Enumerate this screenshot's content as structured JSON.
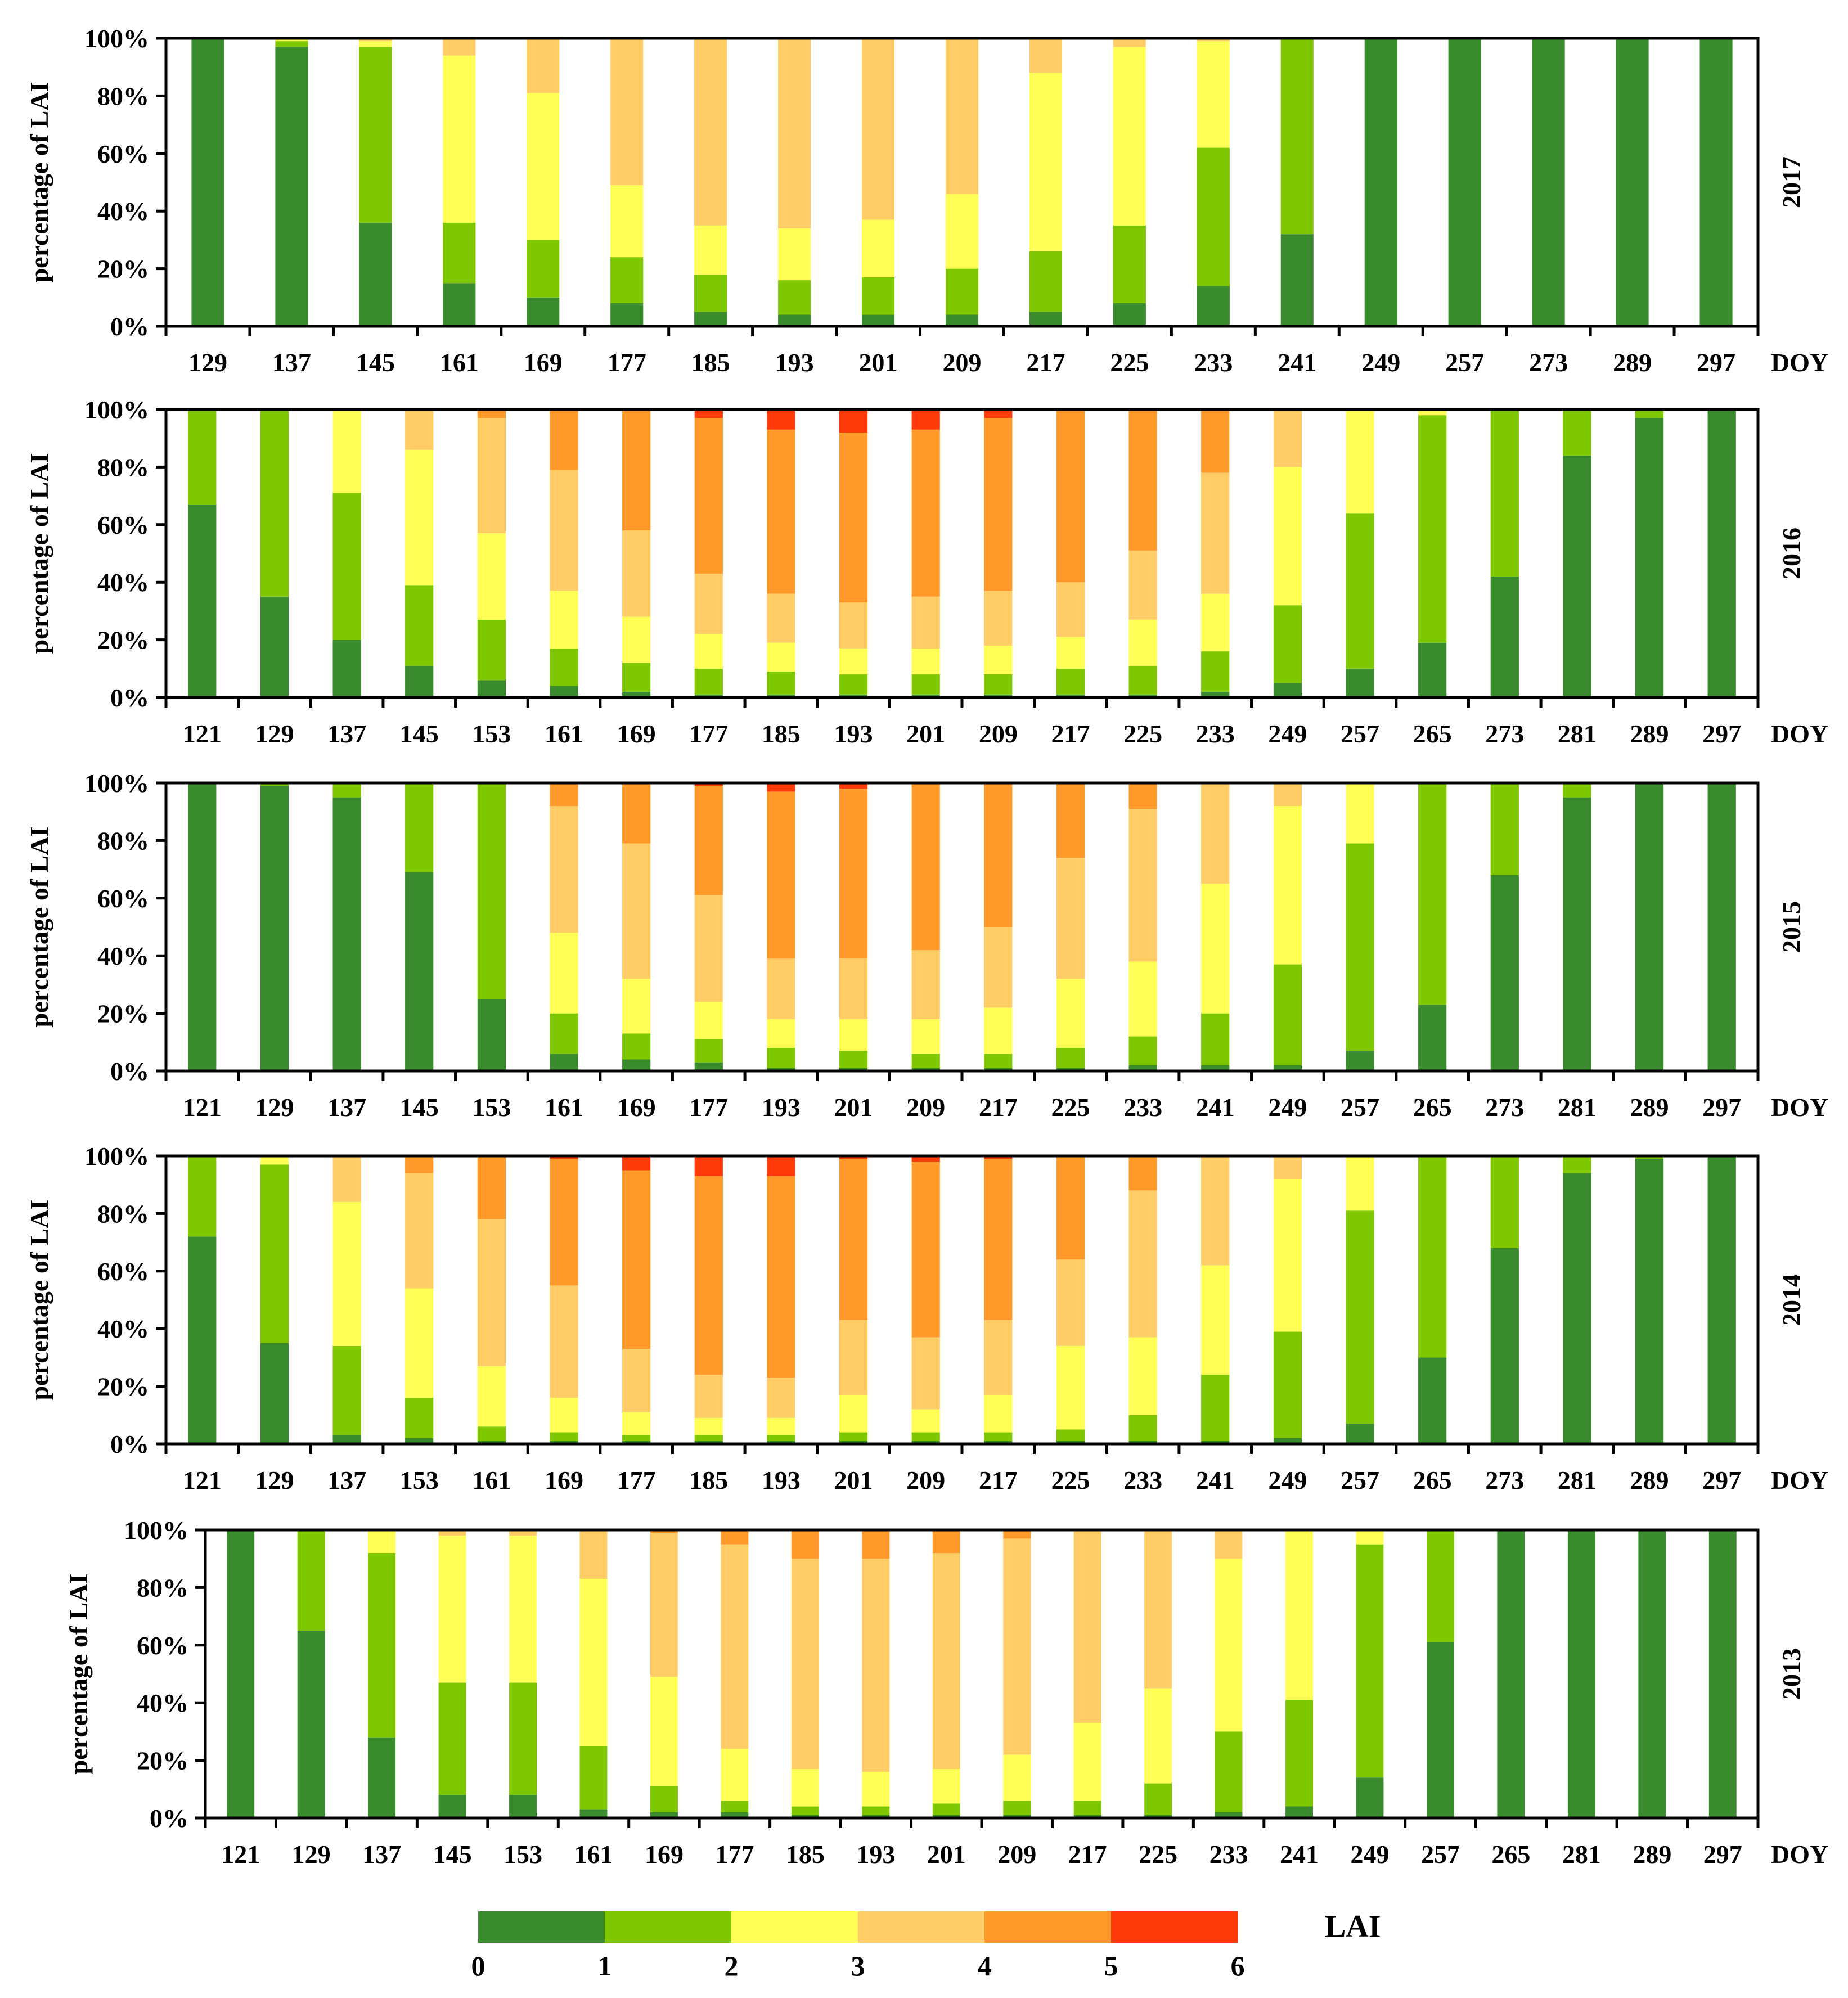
{
  "colors": [
    "#3a8a2e",
    "#7fc800",
    "#ffff55",
    "#ffcc66",
    "#ff9a2a",
    "#ff3a0a"
  ],
  "legend": {
    "title": "LAI",
    "ticks": [
      "0",
      "1",
      "2",
      "3",
      "4",
      "5",
      "6"
    ]
  },
  "chart_data": [
    {
      "type": "stacked-bar-100",
      "year_label": "2017",
      "ylabel": "percentage of LAI",
      "xlabel": "DOY",
      "yticks": [
        "0%",
        "20%",
        "40%",
        "60%",
        "80%",
        "100%"
      ],
      "ylim": [
        0,
        100
      ],
      "categories": [
        "129",
        "137",
        "145",
        "161",
        "169",
        "177",
        "185",
        "193",
        "201",
        "209",
        "217",
        "225",
        "233",
        "241",
        "249",
        "257",
        "273",
        "289",
        "297"
      ],
      "series": [
        {
          "name": "LAI 0-1",
          "values": [
            100,
            97,
            36,
            15,
            10,
            8,
            5,
            4,
            4,
            4,
            5,
            8,
            14,
            32,
            100,
            100,
            100,
            100,
            100
          ]
        },
        {
          "name": "LAI 1-2",
          "values": [
            0,
            2,
            61,
            21,
            20,
            16,
            13,
            12,
            13,
            16,
            21,
            27,
            48,
            68,
            0,
            0,
            0,
            0,
            0
          ]
        },
        {
          "name": "LAI 2-3",
          "values": [
            0,
            1,
            2,
            58,
            51,
            25,
            17,
            18,
            20,
            26,
            62,
            62,
            37,
            0,
            0,
            0,
            0,
            0,
            0
          ]
        },
        {
          "name": "LAI 3-4",
          "values": [
            0,
            0,
            1,
            6,
            19,
            51,
            65,
            66,
            63,
            54,
            12,
            3,
            1,
            0,
            0,
            0,
            0,
            0,
            0
          ]
        },
        {
          "name": "LAI 4-5",
          "values": [
            0,
            0,
            0,
            0,
            0,
            0,
            0,
            0,
            0,
            0,
            0,
            0,
            0,
            0,
            0,
            0,
            0,
            0,
            0
          ]
        },
        {
          "name": "LAI 5-6",
          "values": [
            0,
            0,
            0,
            0,
            0,
            0,
            0,
            0,
            0,
            0,
            0,
            0,
            0,
            0,
            0,
            0,
            0,
            0,
            0
          ]
        }
      ]
    },
    {
      "type": "stacked-bar-100",
      "year_label": "2016",
      "ylabel": "percentage of LAI",
      "xlabel": "DOY",
      "yticks": [
        "0%",
        "20%",
        "40%",
        "60%",
        "80%",
        "100%"
      ],
      "ylim": [
        0,
        100
      ],
      "categories": [
        "121",
        "129",
        "137",
        "145",
        "153",
        "161",
        "169",
        "177",
        "185",
        "193",
        "201",
        "209",
        "217",
        "225",
        "233",
        "249",
        "257",
        "265",
        "273",
        "281",
        "289",
        "297"
      ],
      "series": [
        {
          "name": "LAI 0-1",
          "values": [
            67,
            35,
            20,
            11,
            6,
            4,
            2,
            1,
            1,
            1,
            1,
            1,
            1,
            1,
            2,
            5,
            10,
            19,
            42,
            84,
            97,
            100
          ]
        },
        {
          "name": "LAI 1-2",
          "values": [
            33,
            65,
            51,
            28,
            21,
            13,
            10,
            9,
            8,
            7,
            7,
            7,
            9,
            10,
            14,
            27,
            54,
            79,
            58,
            16,
            3,
            0
          ]
        },
        {
          "name": "LAI 2-3",
          "values": [
            0,
            0,
            29,
            47,
            30,
            20,
            16,
            12,
            10,
            9,
            9,
            10,
            11,
            16,
            20,
            48,
            36,
            2,
            0,
            0,
            0,
            0
          ]
        },
        {
          "name": "LAI 3-4",
          "values": [
            0,
            0,
            0,
            14,
            40,
            42,
            30,
            21,
            17,
            16,
            18,
            19,
            19,
            24,
            42,
            20,
            0,
            0,
            0,
            0,
            0,
            0
          ]
        },
        {
          "name": "LAI 4-5",
          "values": [
            0,
            0,
            0,
            0,
            3,
            21,
            42,
            54,
            57,
            59,
            58,
            60,
            60,
            49,
            22,
            0,
            0,
            0,
            0,
            0,
            0,
            0
          ]
        },
        {
          "name": "LAI 5-6",
          "values": [
            0,
            0,
            0,
            0,
            0,
            0,
            0,
            3,
            7,
            8,
            7,
            3,
            0,
            0,
            0,
            0,
            0,
            0,
            0,
            0,
            0,
            0
          ]
        }
      ]
    },
    {
      "type": "stacked-bar-100",
      "year_label": "2015",
      "ylabel": "percentage of LAI",
      "xlabel": "DOY",
      "yticks": [
        "0%",
        "20%",
        "40%",
        "60%",
        "80%",
        "100%"
      ],
      "ylim": [
        0,
        100
      ],
      "categories": [
        "121",
        "129",
        "137",
        "145",
        "153",
        "161",
        "169",
        "177",
        "193",
        "201",
        "209",
        "217",
        "225",
        "233",
        "241",
        "249",
        "257",
        "265",
        "273",
        "281",
        "289",
        "297"
      ],
      "series": [
        {
          "name": "LAI 0-1",
          "values": [
            100,
            99,
            95,
            69,
            25,
            6,
            4,
            3,
            1,
            1,
            1,
            1,
            1,
            2,
            2,
            2,
            7,
            23,
            68,
            95,
            100,
            100
          ]
        },
        {
          "name": "LAI 1-2",
          "values": [
            0,
            1,
            5,
            31,
            75,
            14,
            9,
            8,
            7,
            6,
            5,
            5,
            7,
            10,
            18,
            35,
            72,
            77,
            32,
            5,
            0,
            0
          ]
        },
        {
          "name": "LAI 2-3",
          "values": [
            0,
            0,
            0,
            0,
            0,
            28,
            19,
            13,
            10,
            11,
            12,
            16,
            24,
            26,
            45,
            55,
            21,
            0,
            0,
            0,
            0,
            0
          ]
        },
        {
          "name": "LAI 3-4",
          "values": [
            0,
            0,
            0,
            0,
            0,
            44,
            47,
            37,
            21,
            21,
            24,
            28,
            42,
            53,
            35,
            8,
            0,
            0,
            0,
            0,
            0,
            0
          ]
        },
        {
          "name": "LAI 4-5",
          "values": [
            0,
            0,
            0,
            0,
            0,
            8,
            21,
            38,
            58,
            59,
            58,
            50,
            26,
            9,
            0,
            0,
            0,
            0,
            0,
            0,
            0,
            0
          ]
        },
        {
          "name": "LAI 5-6",
          "values": [
            0,
            0,
            0,
            0,
            0,
            0,
            0,
            1,
            3,
            2,
            0,
            0,
            0,
            0,
            0,
            0,
            0,
            0,
            0,
            0,
            0,
            0
          ]
        }
      ]
    },
    {
      "type": "stacked-bar-100",
      "year_label": "2014",
      "ylabel": "percentage of LAI",
      "xlabel": "DOY",
      "yticks": [
        "0%",
        "20%",
        "40%",
        "60%",
        "80%",
        "100%"
      ],
      "ylim": [
        0,
        100
      ],
      "categories": [
        "121",
        "129",
        "137",
        "153",
        "161",
        "169",
        "177",
        "185",
        "193",
        "201",
        "209",
        "217",
        "225",
        "233",
        "241",
        "249",
        "257",
        "265",
        "273",
        "281",
        "289",
        "297"
      ],
      "series": [
        {
          "name": "LAI 0-1",
          "values": [
            72,
            35,
            3,
            2,
            1,
            1,
            1,
            1,
            1,
            1,
            1,
            1,
            1,
            1,
            1,
            2,
            7,
            30,
            68,
            94,
            99,
            100
          ]
        },
        {
          "name": "LAI 1-2",
          "values": [
            28,
            62,
            31,
            14,
            5,
            3,
            2,
            2,
            2,
            3,
            3,
            3,
            4,
            9,
            23,
            37,
            74,
            70,
            32,
            6,
            1,
            0
          ]
        },
        {
          "name": "LAI 2-3",
          "values": [
            0,
            3,
            50,
            38,
            21,
            12,
            8,
            6,
            6,
            13,
            8,
            13,
            29,
            27,
            38,
            53,
            19,
            0,
            0,
            0,
            0,
            0
          ]
        },
        {
          "name": "LAI 3-4",
          "values": [
            0,
            0,
            16,
            40,
            51,
            39,
            22,
            15,
            14,
            26,
            25,
            26,
            30,
            51,
            38,
            8,
            0,
            0,
            0,
            0,
            0,
            0
          ]
        },
        {
          "name": "LAI 4-5",
          "values": [
            0,
            0,
            0,
            6,
            22,
            44,
            62,
            69,
            70,
            56,
            61,
            56,
            36,
            12,
            0,
            0,
            0,
            0,
            0,
            0,
            0,
            0
          ]
        },
        {
          "name": "LAI 5-6",
          "values": [
            0,
            0,
            0,
            0,
            0,
            1,
            5,
            7,
            7,
            1,
            2,
            1,
            0,
            0,
            0,
            0,
            0,
            0,
            0,
            0,
            0,
            0
          ]
        }
      ]
    },
    {
      "type": "stacked-bar-100",
      "year_label": "2013",
      "ylabel": "percentage of LAI",
      "xlabel": "DOY",
      "yticks": [
        "0%",
        "20%",
        "40%",
        "60%",
        "80%",
        "100%"
      ],
      "ylim": [
        0,
        100
      ],
      "categories": [
        "121",
        "129",
        "137",
        "145",
        "153",
        "161",
        "169",
        "177",
        "185",
        "193",
        "201",
        "209",
        "217",
        "225",
        "233",
        "241",
        "249",
        "257",
        "265",
        "281",
        "289",
        "297"
      ],
      "series": [
        {
          "name": "LAI 0-1",
          "values": [
            100,
            65,
            28,
            8,
            8,
            3,
            2,
            2,
            1,
            1,
            1,
            1,
            1,
            1,
            2,
            4,
            14,
            61,
            100,
            100,
            100,
            100
          ]
        },
        {
          "name": "LAI 1-2",
          "values": [
            0,
            35,
            64,
            39,
            39,
            22,
            9,
            4,
            3,
            3,
            4,
            5,
            5,
            11,
            28,
            37,
            81,
            39,
            0,
            0,
            0,
            0
          ]
        },
        {
          "name": "LAI 2-3",
          "values": [
            0,
            0,
            8,
            51,
            51,
            58,
            38,
            18,
            13,
            12,
            12,
            16,
            27,
            33,
            60,
            59,
            5,
            0,
            0,
            0,
            0,
            0
          ]
        },
        {
          "name": "LAI 3-4",
          "values": [
            0,
            0,
            0,
            2,
            2,
            17,
            50,
            71,
            73,
            74,
            75,
            75,
            67,
            55,
            10,
            0,
            0,
            0,
            0,
            0,
            0,
            0
          ]
        },
        {
          "name": "LAI 4-5",
          "values": [
            0,
            0,
            0,
            0,
            0,
            0,
            1,
            5,
            10,
            10,
            8,
            3,
            0,
            0,
            0,
            0,
            0,
            0,
            0,
            0,
            0,
            0
          ]
        },
        {
          "name": "LAI 5-6",
          "values": [
            0,
            0,
            0,
            0,
            0,
            0,
            0,
            0,
            0,
            0,
            0,
            0,
            0,
            0,
            0,
            0,
            0,
            0,
            0,
            0,
            0,
            0
          ]
        }
      ]
    }
  ]
}
